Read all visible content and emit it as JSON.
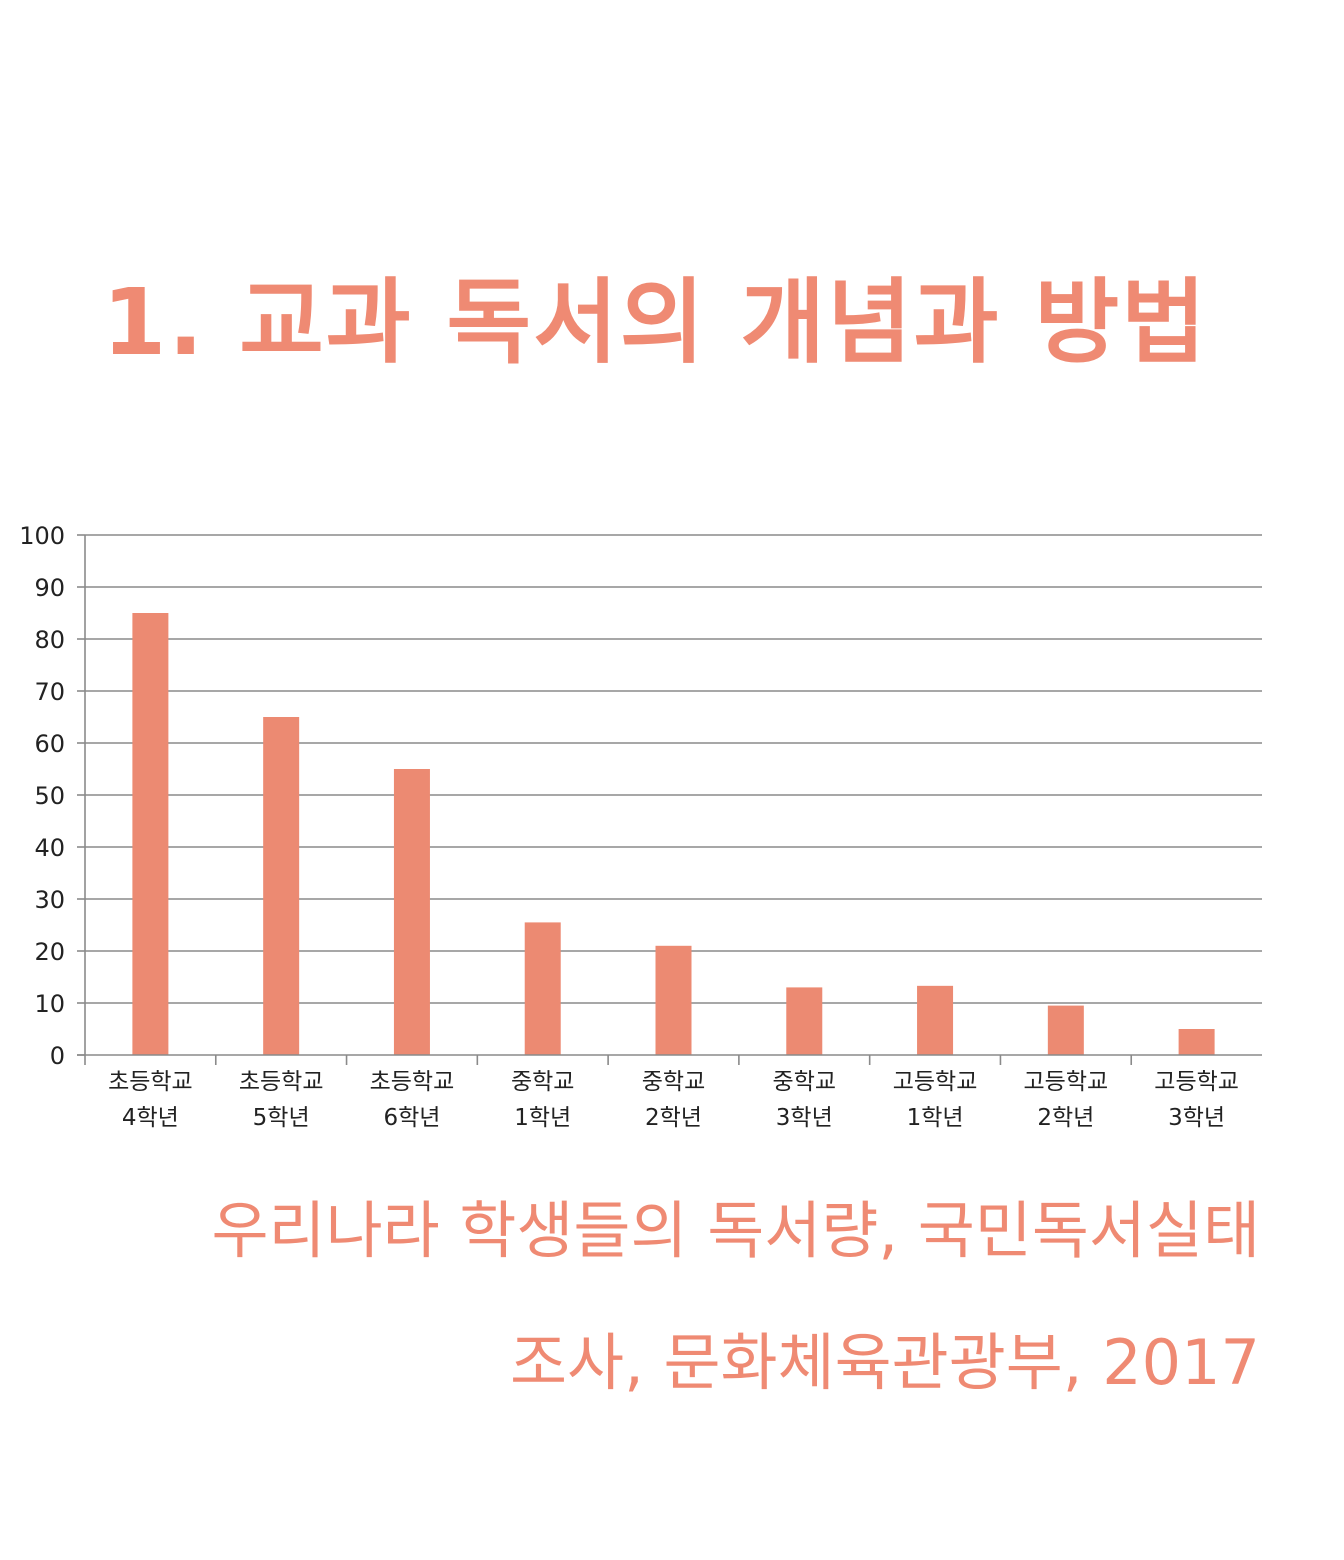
{
  "title": "1. 교과 독서의 개념과 방법",
  "caption": {
    "line1": "우리나라 학생들의 독서량, 국민독서실태",
    "line2": "조사, 문화체육관광부, 2017"
  },
  "colors": {
    "accent": "#ef8a73",
    "bar": "#ec8a72",
    "grid": "#8a8a8a"
  },
  "chart_data": {
    "type": "bar",
    "categories": [
      [
        "초등학교",
        "4학년"
      ],
      [
        "초등학교",
        "5학년"
      ],
      [
        "초등학교",
        "6학년"
      ],
      [
        "중학교",
        "1학년"
      ],
      [
        "중학교",
        "2학년"
      ],
      [
        "중학교",
        "3학년"
      ],
      [
        "고등학교",
        "1학년"
      ],
      [
        "고등학교",
        "2학년"
      ],
      [
        "고등학교",
        "3학년"
      ]
    ],
    "values": [
      85,
      65,
      55,
      25.5,
      21,
      13,
      13.3,
      9.5,
      5
    ],
    "ylim": [
      0,
      100
    ],
    "yticks": [
      0,
      10,
      20,
      30,
      40,
      50,
      60,
      70,
      80,
      90,
      100
    ],
    "grid": true
  }
}
